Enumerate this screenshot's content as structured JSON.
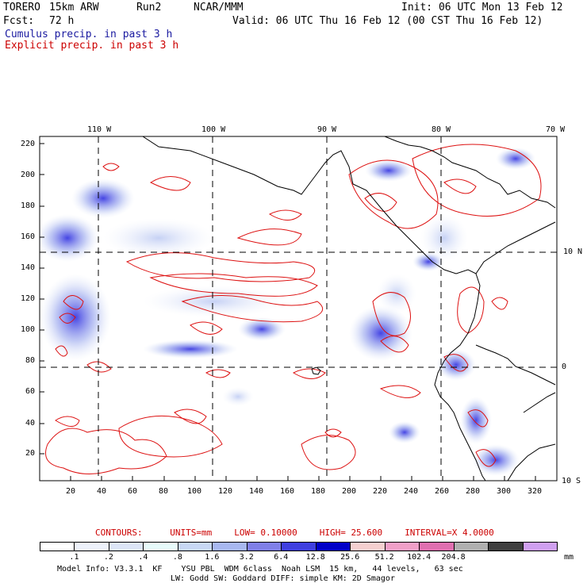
{
  "header": {
    "model": "TORERO",
    "resolution": "15km ARW",
    "run": "Run2",
    "org": "NCAR/MMM",
    "init": "Init: 06 UTC Mon 13 Feb 12",
    "fcst_label": "Fcst:",
    "fcst_value": "72 h",
    "valid": "Valid: 06 UTC Thu 16 Feb 12 (00 CST Thu 16 Feb 12)",
    "field1": "Cumulus precip. in past 3 h",
    "field2": "Explicit precip. in past 3 h"
  },
  "map": {
    "lon_labels": [
      "110 W",
      "100 W",
      "90 W",
      "80 W",
      "70 W"
    ],
    "lat_labels": [
      "10 N",
      "0",
      "10 S"
    ],
    "y_ticks": [
      "220",
      "200",
      "180",
      "160",
      "140",
      "120",
      "100",
      "80",
      "60",
      "40",
      "20"
    ],
    "x_ticks": [
      "20",
      "40",
      "60",
      "80",
      "100",
      "120",
      "140",
      "160",
      "180",
      "200",
      "220",
      "240",
      "260",
      "280",
      "300",
      "320"
    ],
    "colors": {
      "explicit_contour": "#dd1111",
      "coast": "#000000",
      "grid": "#000000"
    }
  },
  "contours_info": {
    "label": "CONTOURS:",
    "units": "UNITS=mm",
    "low": "LOW= 0.10000",
    "high": "HIGH= 25.600",
    "interval": "INTERVAL=X 4.0000"
  },
  "colorbar": {
    "unit": "mm",
    "colors": [
      "#ffffff",
      "#eef2fb",
      "#dde6f7",
      "#e8fbfb",
      "#c8d8f5",
      "#a8b8f0",
      "#8080e8",
      "#4040e0",
      "#0000c8",
      "#f5d0d0",
      "#f0a0c8",
      "#e070b0",
      "#b0b0b0",
      "#404040",
      "#d0a0f0"
    ],
    "labels": [
      ".1",
      ".2",
      ".4",
      ".8",
      "1.6",
      "3.2",
      "6.4",
      "12.8",
      "25.6",
      "51.2",
      "102.4",
      "204.8"
    ]
  },
  "footer": {
    "line1": "Model Info: V3.3.1  KF    YSU PBL  WDM 6class  Noah LSM  15 km,   44 levels,   63 sec",
    "line2": "LW: Godd SW: Goddard DIFF: simple KM: 2D Smagor"
  }
}
